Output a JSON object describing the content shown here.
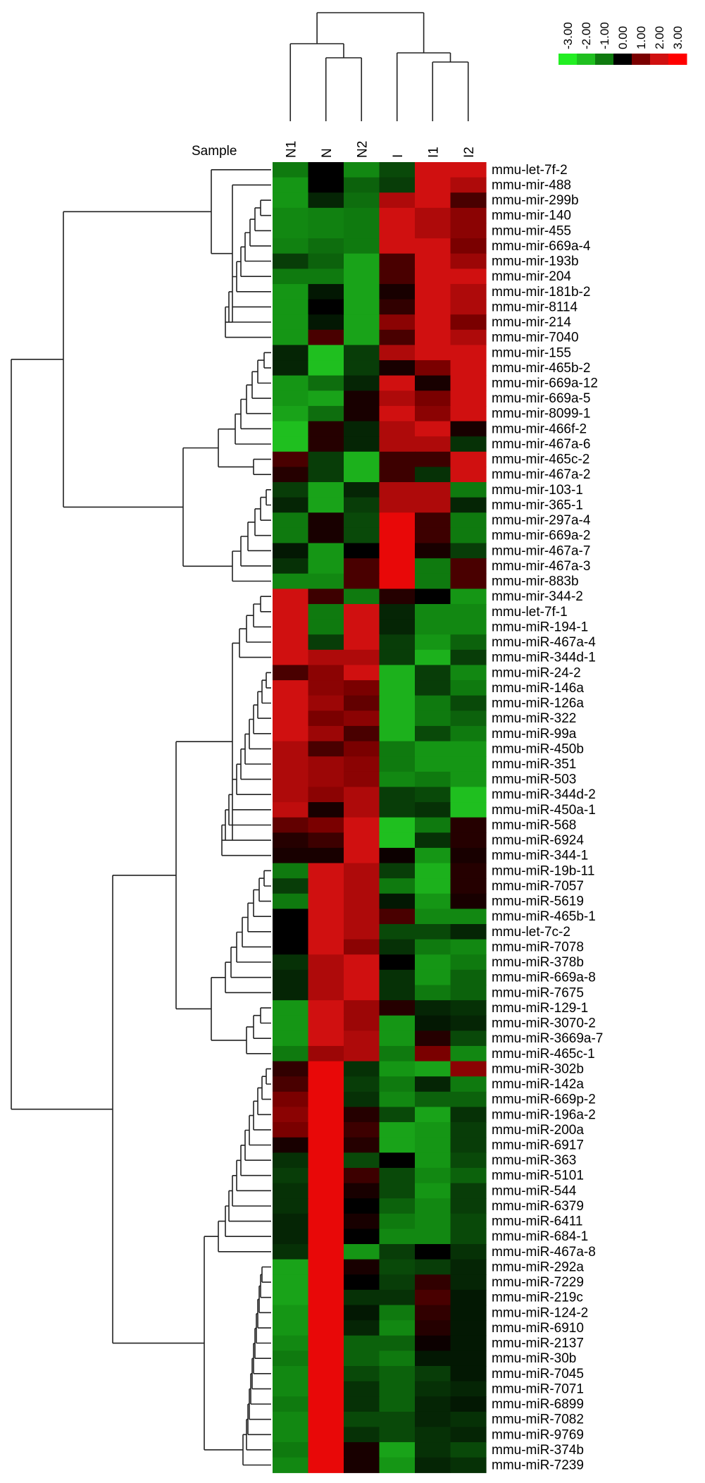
{
  "chart_data": {
    "type": "heatmap",
    "title": "",
    "xlabel": "Sample",
    "ylabel": "",
    "columns": [
      "N1",
      "N",
      "N2",
      "I",
      "I1",
      "I2"
    ],
    "rows": [
      "mmu-let-7f-2",
      "mmu-mir-488",
      "mmu-mir-299b",
      "mmu-mir-140",
      "mmu-mir-455",
      "mmu-mir-669a-4",
      "mmu-mir-193b",
      "mmu-mir-204",
      "mmu-mir-181b-2",
      "mmu-mir-8114",
      "mmu-mir-214",
      "mmu-mir-7040",
      "mmu-mir-155",
      "mmu-mir-465b-2",
      "mmu-mir-669a-12",
      "mmu-mir-669a-5",
      "mmu-mir-8099-1",
      "mmu-mir-466f-2",
      "mmu-mir-467a-6",
      "mmu-mir-465c-2",
      "mmu-mir-467a-2",
      "mmu-mir-103-1",
      "mmu-mir-365-1",
      "mmu-mir-297a-4",
      "mmu-mir-669a-2",
      "mmu-mir-467a-7",
      "mmu-mir-467a-3",
      "mmu-mir-883b",
      "mmu-mir-344-2",
      "mmu-let-7f-1",
      "mmu-miR-194-1",
      "mmu-miR-467a-4",
      "mmu-miR-344d-1",
      "mmu-miR-24-2",
      "mmu-miR-146a",
      "mmu-miR-126a",
      "mmu-miR-322",
      "mmu-miR-99a",
      "mmu-miR-450b",
      "mmu-miR-351",
      "mmu-miR-503",
      "mmu-miR-344d-2",
      "mmu-miR-450a-1",
      "mmu-miR-568",
      "mmu-miR-6924",
      "mmu-miR-344-1",
      "mmu-miR-19b-11",
      "mmu-miR-7057",
      "mmu-miR-5619",
      "mmu-miR-465b-1",
      "mmu-let-7c-2",
      "mmu-miR-7078",
      "mmu-miR-378b",
      "mmu-miR-669a-8",
      "mmu-miR-7675",
      "mmu-miR-129-1",
      "mmu-miR-3070-2",
      "mmu-miR-3669a-7",
      "mmu-miR-465c-1",
      "mmu-miR-302b",
      "mmu-miR-142a",
      "mmu-miR-669p-2",
      "mmu-miR-196a-2",
      "mmu-miR-200a",
      "mmu-miR-6917",
      "mmu-miR-363",
      "mmu-miR-5101",
      "mmu-miR-544",
      "mmu-miR-6379",
      "mmu-miR-6411",
      "mmu-miR-684-1",
      "mmu-miR-467a-8",
      "mmu-miR-292a",
      "mmu-miR-7229",
      "mmu-miR-219c",
      "mmu-miR-124-2",
      "mmu-miR-6910",
      "mmu-miR-2137",
      "mmu-miR-30b",
      "mmu-miR-7045",
      "mmu-miR-7071",
      "mmu-miR-6899",
      "mmu-miR-7082",
      "mmu-miR-9769",
      "mmu-miR-374b",
      "mmu-miR-7239"
    ],
    "values": [
      [
        -1.0,
        0.0,
        -1.2,
        -0.6,
        2.0,
        2.0
      ],
      [
        -1.4,
        0.0,
        -0.8,
        -0.5,
        2.0,
        1.6
      ],
      [
        -1.4,
        -0.3,
        -0.9,
        1.6,
        2.0,
        0.6
      ],
      [
        -1.2,
        -1.1,
        -1.0,
        2.0,
        1.6,
        1.2
      ],
      [
        -1.2,
        -1.1,
        -1.0,
        2.0,
        1.6,
        1.2
      ],
      [
        -1.1,
        -0.9,
        -1.0,
        2.0,
        2.0,
        1.0
      ],
      [
        -0.5,
        -0.8,
        -1.6,
        0.6,
        2.0,
        1.4
      ],
      [
        -1.0,
        -1.0,
        -1.6,
        0.6,
        2.0,
        2.0
      ],
      [
        -1.4,
        -0.2,
        -1.6,
        0.2,
        2.0,
        1.6
      ],
      [
        -1.4,
        0.0,
        -1.6,
        0.4,
        2.0,
        1.6
      ],
      [
        -1.4,
        -0.2,
        -1.6,
        1.2,
        2.0,
        1.0
      ],
      [
        -1.4,
        0.6,
        -1.6,
        0.6,
        2.0,
        1.6
      ],
      [
        -0.3,
        -2.0,
        -0.5,
        1.6,
        2.0,
        2.0
      ],
      [
        -0.3,
        -2.0,
        -0.5,
        0.2,
        1.0,
        2.0
      ],
      [
        -1.4,
        -0.9,
        -0.3,
        2.0,
        0.2,
        2.0
      ],
      [
        -1.4,
        -1.6,
        0.2,
        1.6,
        1.0,
        2.0
      ],
      [
        -1.6,
        -0.9,
        0.2,
        2.0,
        1.2,
        2.0
      ],
      [
        -2.0,
        0.3,
        -0.3,
        1.6,
        2.0,
        0.2
      ],
      [
        -2.0,
        0.3,
        -0.3,
        1.6,
        1.6,
        -0.4
      ],
      [
        0.6,
        -0.5,
        -1.8,
        0.5,
        0.5,
        2.0
      ],
      [
        0.3,
        -0.5,
        -1.8,
        0.5,
        -0.4,
        2.0
      ],
      [
        -0.5,
        -1.6,
        -0.3,
        1.6,
        1.6,
        -1.0
      ],
      [
        -0.3,
        -1.6,
        -0.5,
        1.6,
        1.6,
        -0.3
      ],
      [
        -1.0,
        0.2,
        -0.6,
        2.5,
        0.5,
        -1.0
      ],
      [
        -1.0,
        0.2,
        -0.6,
        2.5,
        0.5,
        -1.0
      ],
      [
        -0.2,
        -1.4,
        0.0,
        2.5,
        0.2,
        -0.5
      ],
      [
        -0.4,
        -1.4,
        0.6,
        2.5,
        -1.0,
        0.6
      ],
      [
        -1.2,
        -1.2,
        0.6,
        2.5,
        -1.0,
        0.6
      ],
      [
        2.0,
        0.5,
        -1.0,
        0.3,
        0.0,
        -1.4
      ],
      [
        2.0,
        -1.0,
        2.0,
        -0.3,
        -1.2,
        -1.2
      ],
      [
        2.0,
        -1.0,
        2.0,
        -0.3,
        -1.2,
        -1.2
      ],
      [
        2.0,
        -0.5,
        2.0,
        -0.5,
        -1.4,
        -0.8
      ],
      [
        2.0,
        1.6,
        1.6,
        -0.5,
        -1.8,
        -0.5
      ],
      [
        0.6,
        1.2,
        2.0,
        -1.8,
        -0.5,
        -1.2
      ],
      [
        2.0,
        1.2,
        1.0,
        -1.8,
        -0.5,
        -1.0
      ],
      [
        2.0,
        1.4,
        0.8,
        -1.8,
        -1.0,
        -0.6
      ],
      [
        2.0,
        1.0,
        1.2,
        -1.8,
        -1.0,
        -0.8
      ],
      [
        2.0,
        1.4,
        0.6,
        -1.8,
        -0.6,
        -1.0
      ],
      [
        1.6,
        0.6,
        1.0,
        -1.0,
        -1.4,
        -1.4
      ],
      [
        1.6,
        1.4,
        1.2,
        -1.0,
        -1.4,
        -1.4
      ],
      [
        1.6,
        1.4,
        1.2,
        -1.2,
        -1.0,
        -1.4
      ],
      [
        1.6,
        1.2,
        1.6,
        -0.5,
        -0.6,
        -2.0
      ],
      [
        1.8,
        0.2,
        1.6,
        -0.5,
        -0.4,
        -2.0
      ],
      [
        0.8,
        1.0,
        2.0,
        -2.0,
        -1.0,
        0.3
      ],
      [
        0.3,
        0.5,
        2.0,
        -2.0,
        -0.4,
        0.3
      ],
      [
        0.2,
        0.2,
        2.0,
        0.1,
        -1.4,
        0.2
      ],
      [
        -1.0,
        2.0,
        1.6,
        -0.5,
        -1.8,
        0.3
      ],
      [
        -0.5,
        2.0,
        1.6,
        -1.0,
        -1.8,
        0.3
      ],
      [
        -1.0,
        2.0,
        1.6,
        -0.2,
        -1.4,
        0.2
      ],
      [
        0.0,
        2.0,
        1.6,
        0.6,
        -1.2,
        -1.2
      ],
      [
        0.0,
        2.0,
        1.6,
        -0.6,
        -0.6,
        -0.3
      ],
      [
        0.0,
        2.0,
        1.2,
        -0.4,
        -1.0,
        -1.2
      ],
      [
        -0.4,
        1.6,
        2.0,
        0.0,
        -1.4,
        -1.0
      ],
      [
        -0.3,
        1.6,
        2.0,
        -0.4,
        -1.4,
        -0.8
      ],
      [
        -0.3,
        1.6,
        2.0,
        -0.4,
        -1.0,
        -0.8
      ],
      [
        -1.4,
        2.0,
        1.4,
        0.3,
        -0.3,
        -0.4
      ],
      [
        -1.4,
        2.0,
        1.4,
        -1.4,
        -0.2,
        -0.3
      ],
      [
        -1.4,
        2.0,
        1.6,
        -1.4,
        0.3,
        -0.6
      ],
      [
        -1.0,
        1.4,
        1.6,
        -1.0,
        1.0,
        -1.2
      ],
      [
        0.4,
        2.5,
        -0.4,
        -1.4,
        -1.6,
        1.2
      ],
      [
        0.6,
        2.5,
        -0.5,
        -1.0,
        -0.3,
        -1.0
      ],
      [
        1.0,
        2.5,
        -0.4,
        -1.2,
        -0.8,
        -0.8
      ],
      [
        1.2,
        2.5,
        0.3,
        -0.6,
        -1.6,
        -0.4
      ],
      [
        1.0,
        2.5,
        0.5,
        -1.6,
        -1.4,
        -0.5
      ],
      [
        0.2,
        2.5,
        0.3,
        -1.6,
        -1.4,
        -0.5
      ],
      [
        -0.4,
        2.5,
        -0.6,
        0.0,
        -1.4,
        -0.6
      ],
      [
        -0.5,
        2.5,
        0.5,
        -0.6,
        -1.2,
        -0.8
      ],
      [
        -0.4,
        2.5,
        0.2,
        -0.6,
        -1.4,
        -0.5
      ],
      [
        -0.4,
        2.5,
        0.0,
        -0.8,
        -1.2,
        -0.5
      ],
      [
        -0.3,
        2.5,
        0.2,
        -1.0,
        -1.2,
        -0.6
      ],
      [
        -0.3,
        2.5,
        0.0,
        -1.2,
        -1.2,
        -0.6
      ],
      [
        -0.4,
        2.5,
        -1.4,
        -0.5,
        0.0,
        -0.4
      ],
      [
        -1.6,
        2.5,
        0.2,
        -0.6,
        -0.5,
        -0.3
      ],
      [
        -1.6,
        2.5,
        0.0,
        -0.5,
        0.4,
        -0.3
      ],
      [
        -1.6,
        2.5,
        -0.4,
        -0.4,
        0.6,
        -0.2
      ],
      [
        -1.4,
        2.5,
        -0.2,
        -1.0,
        0.4,
        -0.2
      ],
      [
        -1.4,
        2.5,
        -0.3,
        -1.2,
        0.3,
        -0.2
      ],
      [
        -1.2,
        2.5,
        -0.8,
        -0.8,
        0.1,
        -0.2
      ],
      [
        -1.0,
        2.5,
        -0.8,
        -1.0,
        -0.2,
        -0.2
      ],
      [
        -1.2,
        2.5,
        -0.6,
        -0.8,
        -0.5,
        -0.2
      ],
      [
        -1.2,
        2.5,
        -0.4,
        -0.8,
        -0.4,
        -0.3
      ],
      [
        -1.0,
        2.5,
        -0.4,
        -0.8,
        -0.3,
        -0.2
      ],
      [
        -1.2,
        2.5,
        -0.6,
        -0.6,
        -0.3,
        -0.4
      ],
      [
        -1.2,
        2.5,
        -0.4,
        -0.6,
        -0.4,
        -0.3
      ],
      [
        -1.0,
        2.5,
        0.2,
        -1.6,
        -0.4,
        -0.6
      ],
      [
        -1.2,
        2.5,
        0.2,
        -1.4,
        -0.3,
        -0.4
      ]
    ],
    "color_scale": {
      "ticks": [
        -3.0,
        -2.0,
        -1.0,
        0.0,
        1.0,
        2.0,
        3.0
      ],
      "tick_labels": [
        "-3.00",
        "-2.00",
        "-1.00",
        "0.00",
        "1.00",
        "2.00",
        "3.00"
      ],
      "colors": [
        "#22ee22",
        "#1fbf1f",
        "#0f7a0f",
        "#000000",
        "#7a0000",
        "#d01010",
        "#ff0000"
      ]
    },
    "legend": "top-right"
  }
}
